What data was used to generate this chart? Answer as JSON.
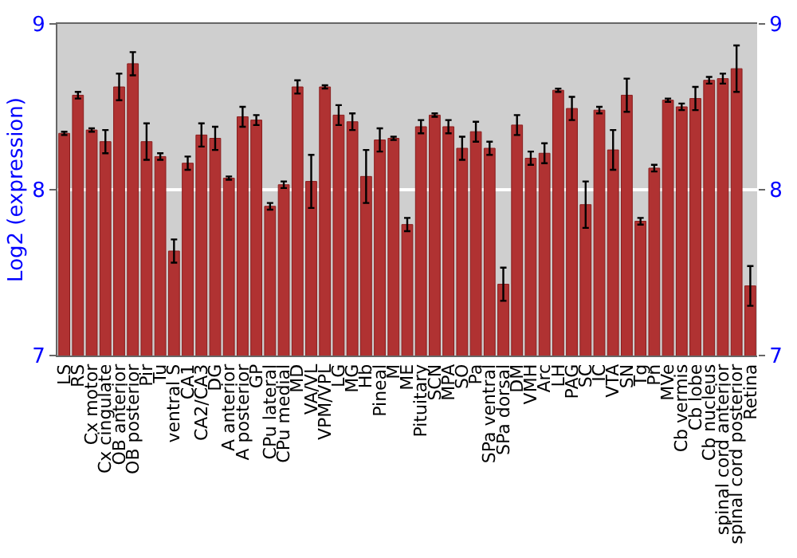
{
  "chart_data": {
    "type": "bar",
    "ylabel": "Log2 (expression)",
    "categories": [
      "LS",
      "RS",
      "Cx motor",
      "Cx cingulate",
      "OB anterior",
      "OB posterior",
      "Pir",
      "Tu",
      "ventral S",
      "CA1",
      "CA2/CA3",
      "DG",
      "A anterior",
      "A posterior",
      "GP",
      "CPu lateral",
      "CPu medial",
      "MD",
      "VA/VL",
      "VPM/VPL",
      "LG",
      "MG",
      "Hb",
      "Pineal",
      "M",
      "ME",
      "Pituitary",
      "SCN",
      "MPA",
      "SO",
      "Pa",
      "SPa ventral",
      "SPa dorsal",
      "DM",
      "VMH",
      "Arc",
      "LH",
      "PAG",
      "SC",
      "IC",
      "VTA",
      "SN",
      "Tg",
      "Pn",
      "MVe",
      "Cb vermis",
      "Cb lobe",
      "Cb nucleus",
      "spinal cord anterior",
      "spinal cord posterior",
      "Retina"
    ],
    "values": [
      8.34,
      8.57,
      8.36,
      8.29,
      8.62,
      8.76,
      8.29,
      8.2,
      7.63,
      8.16,
      8.33,
      8.31,
      8.07,
      8.44,
      8.42,
      7.9,
      8.03,
      8.62,
      8.05,
      8.62,
      8.45,
      8.41,
      8.08,
      8.3,
      8.31,
      7.79,
      8.38,
      8.45,
      8.38,
      8.25,
      8.35,
      8.25,
      7.43,
      8.39,
      8.19,
      8.22,
      8.6,
      8.49,
      7.91,
      8.48,
      8.24,
      8.57,
      7.81,
      8.13,
      8.54,
      8.5,
      8.55,
      8.66,
      8.67,
      8.73,
      7.42
    ],
    "errors": [
      0.01,
      0.02,
      0.01,
      0.07,
      0.08,
      0.07,
      0.11,
      0.02,
      0.07,
      0.04,
      0.07,
      0.07,
      0.01,
      0.06,
      0.03,
      0.02,
      0.02,
      0.04,
      0.16,
      0.01,
      0.06,
      0.05,
      0.16,
      0.07,
      0.01,
      0.04,
      0.04,
      0.01,
      0.04,
      0.07,
      0.06,
      0.04,
      0.1,
      0.06,
      0.04,
      0.06,
      0.01,
      0.07,
      0.14,
      0.02,
      0.12,
      0.1,
      0.02,
      0.02,
      0.01,
      0.02,
      0.07,
      0.02,
      0.03,
      0.14,
      0.12
    ],
    "color": "#b03232",
    "ylim": [
      7,
      9
    ],
    "yticks": [
      7,
      8,
      9
    ],
    "y2lim": [
      7,
      9
    ],
    "y2ticks": [
      7,
      8,
      9
    ],
    "grid": "y"
  }
}
